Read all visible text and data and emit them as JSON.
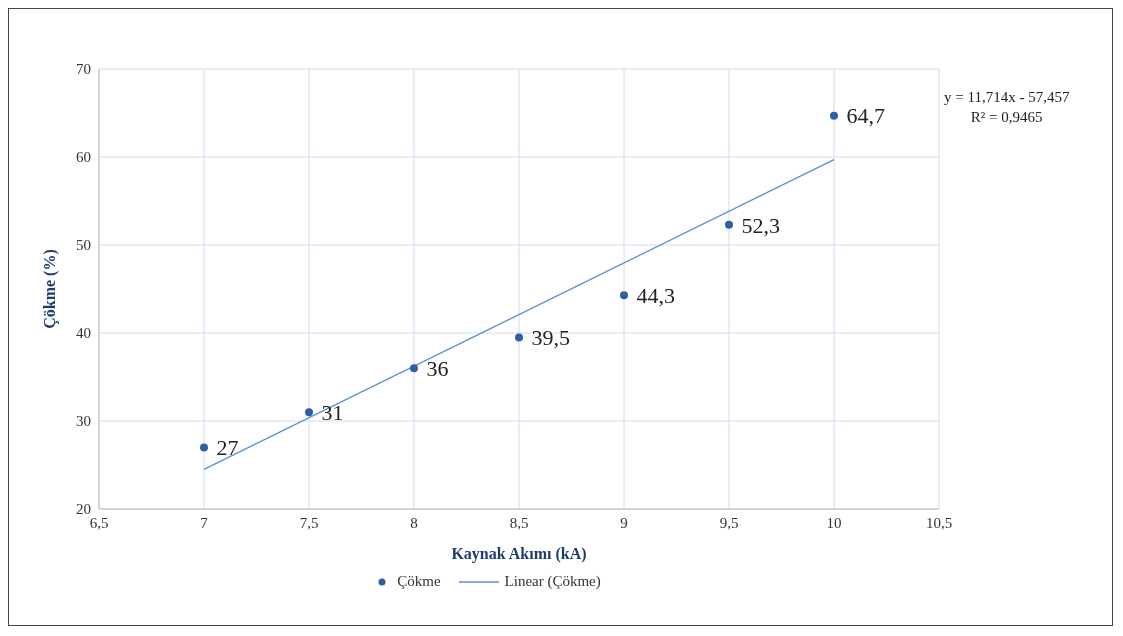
{
  "chart_data": {
    "type": "scatter",
    "xlabel": "Kaynak Akımı (kA)",
    "ylabel": "Çökme (%)",
    "xlim": [
      6.5,
      10.5
    ],
    "xticks": [
      {
        "value": 6.5,
        "label": "6,5"
      },
      7,
      {
        "value": 7.5,
        "label": "7,5"
      },
      8,
      {
        "value": 8.5,
        "label": "8,5"
      },
      9,
      {
        "value": 9.5,
        "label": "9,5"
      },
      10,
      {
        "value": 10.5,
        "label": "10,5"
      }
    ],
    "ylim": [
      20,
      70
    ],
    "yticks": [
      20,
      30,
      40,
      50,
      60,
      70
    ],
    "grid": true,
    "legend": "bottom",
    "marker": "circle",
    "x": [
      7,
      7.5,
      8,
      8.5,
      9,
      9.5,
      10
    ],
    "series": [
      {
        "name": "Çökme",
        "color": "#2f5da6",
        "values": [
          27,
          31,
          36,
          39.5,
          44.3,
          52.3,
          64.7
        ],
        "value_labels": [
          "27",
          "31",
          "36",
          "39,5",
          "44,3",
          "52,3",
          "64,7"
        ]
      },
      {
        "name": "Linear (Çökme)",
        "type": "line",
        "color": "#5b8fd0",
        "line_style": "solid",
        "marker": "none",
        "x": [
          7,
          10
        ],
        "values": [
          24.5,
          59.7
        ]
      }
    ],
    "annotations": [
      "y = 11,714x - 57,457",
      "R² = 0,9465"
    ]
  }
}
